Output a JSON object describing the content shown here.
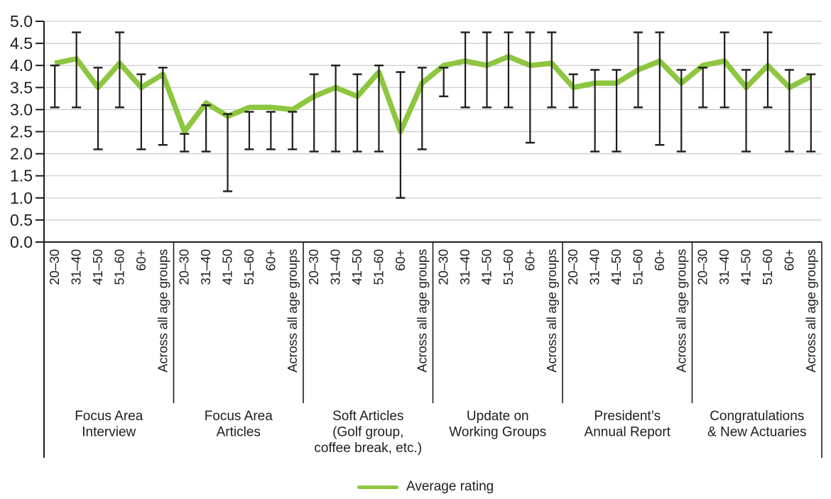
{
  "chart_data": {
    "type": "line",
    "title": "",
    "legend_label": "Average rating",
    "legend_position": "bottom-center",
    "grid": true,
    "line_color": "#8dc63f",
    "error_bar_color": "#1d1d1b",
    "grid_color": "#c9c9c9",
    "axis_color": "#1d1d1b",
    "text_color": "#1d1d1b",
    "ylim": [
      0.0,
      5.0
    ],
    "ytick_step": 0.5,
    "yticks": [
      "5.0",
      "4.5",
      "4.0",
      "3.5",
      "3.0",
      "2.5",
      "2.0",
      "1.5",
      "1.0",
      "0.5",
      "0.0"
    ],
    "age_groups": [
      "20–30",
      "31–40",
      "41–50",
      "51–60",
      "60+",
      "Across all age groups"
    ],
    "error_bars": true,
    "sections": [
      {
        "label": "Focus Area Interview",
        "label_lines": [
          "Focus Area",
          "Interview"
        ],
        "values": [
          4.05,
          4.15,
          3.5,
          4.05,
          3.5,
          3.8
        ],
        "err_low": [
          3.05,
          3.05,
          2.1,
          3.05,
          2.1,
          2.2
        ],
        "err_high": [
          4.0,
          4.75,
          3.95,
          4.75,
          3.8,
          3.95
        ]
      },
      {
        "label": "Focus Area Articles",
        "label_lines": [
          "Focus Area",
          "Articles"
        ],
        "values": [
          2.5,
          3.15,
          2.85,
          3.05,
          3.05,
          3.0
        ],
        "err_low": [
          2.05,
          2.05,
          1.15,
          2.1,
          2.1,
          2.1
        ],
        "err_high": [
          2.45,
          3.1,
          2.9,
          2.95,
          2.95,
          2.95
        ]
      },
      {
        "label": "Soft Articles (Golf group, coffee break, etc.)",
        "label_lines": [
          "Soft Articles",
          "(Golf group,",
          "coffee break, etc.)"
        ],
        "values": [
          3.3,
          3.5,
          3.3,
          3.85,
          2.5,
          3.6
        ],
        "err_low": [
          2.05,
          2.05,
          2.05,
          2.05,
          1.0,
          2.1
        ],
        "err_high": [
          3.8,
          4.0,
          3.8,
          4.0,
          3.85,
          3.95
        ]
      },
      {
        "label": "Update on Working Groups",
        "label_lines": [
          "Update on",
          "Working Groups"
        ],
        "values": [
          4.0,
          4.1,
          4.0,
          4.2,
          4.0,
          4.05
        ],
        "err_low": [
          3.3,
          3.05,
          3.05,
          3.05,
          2.25,
          3.05
        ],
        "err_high": [
          3.95,
          4.75,
          4.75,
          4.75,
          4.75,
          4.75
        ]
      },
      {
        "label": "President’s Annual Report",
        "label_lines": [
          "President’s",
          "Annual Report"
        ],
        "values": [
          3.5,
          3.6,
          3.6,
          3.9,
          4.1,
          3.6
        ],
        "err_low": [
          3.05,
          2.05,
          2.05,
          3.05,
          2.2,
          2.05
        ],
        "err_high": [
          3.8,
          3.9,
          3.9,
          4.75,
          4.75,
          3.9
        ]
      },
      {
        "label": "Congratulations & New Actuaries",
        "label_lines": [
          "Congratulations",
          "& New Actuaries"
        ],
        "values": [
          4.0,
          4.1,
          3.5,
          4.0,
          3.5,
          3.75
        ],
        "err_low": [
          3.05,
          3.05,
          2.05,
          3.05,
          2.05,
          2.05
        ],
        "err_high": [
          3.95,
          4.75,
          3.9,
          4.75,
          3.9,
          3.8
        ]
      }
    ]
  }
}
